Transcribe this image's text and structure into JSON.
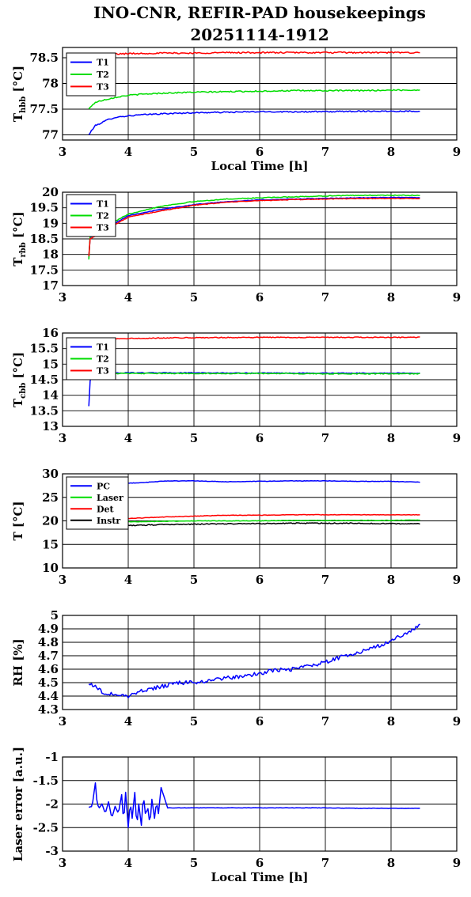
{
  "title_line1": "INO-CNR, REFIR-PAD housekeepings",
  "title_line2": "20251114-1912",
  "chart_data": [
    {
      "type": "line",
      "ylabel": "T",
      "ylabel_sub": "hbb",
      "ylabel_unit": " [°C]",
      "xlabel": "Local Time [h]",
      "xlim": [
        3,
        9
      ],
      "ylim": [
        76.9,
        78.7
      ],
      "xticks": [
        "3",
        "4",
        "5",
        "6",
        "7",
        "8",
        "9"
      ],
      "yticks": [
        {
          "v": 77,
          "t": "77"
        },
        {
          "v": 77.5,
          "t": "77.5"
        },
        {
          "v": 78,
          "t": "78"
        },
        {
          "v": 78.5,
          "t": "78.5"
        }
      ],
      "legend": "top-left",
      "grid": true,
      "series": [
        {
          "name": "T1",
          "color": "#0000ff",
          "x": [
            3.4,
            3.45,
            3.5,
            3.6,
            3.7,
            3.8,
            4.0,
            4.2,
            4.5,
            5,
            5.5,
            6,
            6.5,
            7,
            7.5,
            8,
            8.45
          ],
          "y": [
            77.0,
            77.1,
            77.18,
            77.24,
            77.3,
            77.34,
            77.37,
            77.39,
            77.41,
            77.43,
            77.44,
            77.45,
            77.45,
            77.45,
            77.46,
            77.46,
            77.46
          ],
          "noise": 0.012
        },
        {
          "name": "T2",
          "color": "#00dd00",
          "x": [
            3.4,
            3.45,
            3.5,
            3.6,
            3.7,
            3.8,
            4.0,
            4.2,
            4.5,
            5,
            5.5,
            6,
            6.5,
            7,
            7.5,
            8,
            8.45
          ],
          "y": [
            77.5,
            77.58,
            77.63,
            77.67,
            77.7,
            77.73,
            77.77,
            77.79,
            77.81,
            77.83,
            77.84,
            77.85,
            77.86,
            77.86,
            77.86,
            77.87,
            77.87
          ],
          "noise": 0.012
        },
        {
          "name": "T3",
          "color": "#ff0000",
          "x": [
            3.5,
            3.7,
            4.0,
            4.5,
            5,
            5.5,
            6,
            6.5,
            7,
            7.5,
            8,
            8.45
          ],
          "y": [
            78.56,
            78.57,
            78.58,
            78.59,
            78.59,
            78.6,
            78.6,
            78.6,
            78.6,
            78.6,
            78.6,
            78.6
          ],
          "noise": 0.014
        }
      ]
    },
    {
      "type": "line",
      "ylabel": "T",
      "ylabel_sub": "rbb",
      "ylabel_unit": " [°C]",
      "xlabel": "",
      "xlim": [
        3,
        9
      ],
      "ylim": [
        17,
        20
      ],
      "xticks": [
        "3",
        "4",
        "5",
        "6",
        "7",
        "8",
        "9"
      ],
      "yticks": [
        {
          "v": 17,
          "t": "17"
        },
        {
          "v": 17.5,
          "t": "17.5"
        },
        {
          "v": 18,
          "t": "18"
        },
        {
          "v": 18.5,
          "t": "18.5"
        },
        {
          "v": 19,
          "t": "19"
        },
        {
          "v": 19.5,
          "t": "19.5"
        },
        {
          "v": 20,
          "t": "20"
        }
      ],
      "legend": "top-left",
      "grid": true,
      "series": [
        {
          "name": "T1",
          "color": "#0000ff",
          "x": [
            3.4,
            3.41,
            3.42,
            4.0,
            4.5,
            5,
            5.5,
            6,
            6.5,
            7,
            7.5,
            8,
            8.45
          ],
          "y": [
            17.9,
            18.3,
            18.55,
            19.25,
            19.45,
            19.6,
            19.7,
            19.75,
            19.78,
            19.8,
            19.82,
            19.83,
            19.83
          ],
          "noise": 0.01
        },
        {
          "name": "T2",
          "color": "#00dd00",
          "x": [
            3.4,
            3.41,
            3.42,
            4.0,
            4.5,
            5,
            5.5,
            6,
            6.5,
            7,
            7.5,
            8,
            8.45
          ],
          "y": [
            17.85,
            18.3,
            18.6,
            19.3,
            19.55,
            19.7,
            19.78,
            19.82,
            19.85,
            19.88,
            19.9,
            19.9,
            19.9
          ],
          "noise": 0.012
        },
        {
          "name": "T3",
          "color": "#ff0000",
          "x": [
            3.4,
            3.41,
            3.42,
            4.0,
            4.5,
            5,
            5.5,
            6,
            6.5,
            7,
            7.5,
            8,
            8.45
          ],
          "y": [
            17.95,
            18.3,
            18.5,
            19.2,
            19.4,
            19.58,
            19.68,
            19.73,
            19.76,
            19.78,
            19.8,
            19.8,
            19.8
          ],
          "noise": 0.01
        }
      ]
    },
    {
      "type": "line",
      "ylabel": "T",
      "ylabel_sub": "cbb",
      "ylabel_unit": " [°C]",
      "xlabel": "",
      "xlim": [
        3,
        9
      ],
      "ylim": [
        13,
        16
      ],
      "xticks": [
        "3",
        "4",
        "5",
        "6",
        "7",
        "8",
        "9"
      ],
      "yticks": [
        {
          "v": 13,
          "t": "13"
        },
        {
          "v": 13.5,
          "t": "13.5"
        },
        {
          "v": 14,
          "t": "14"
        },
        {
          "v": 14.5,
          "t": "14.5"
        },
        {
          "v": 15,
          "t": "15"
        },
        {
          "v": 15.5,
          "t": "15.5"
        },
        {
          "v": 16,
          "t": "16"
        }
      ],
      "legend": "top-left",
      "grid": true,
      "series": [
        {
          "name": "T1",
          "color": "#0000ff",
          "x": [
            3.4,
            3.41,
            3.43,
            3.5,
            4.0,
            5,
            6,
            7,
            8,
            8.45
          ],
          "y": [
            13.65,
            14.3,
            14.6,
            14.7,
            14.72,
            14.72,
            14.71,
            14.71,
            14.71,
            14.71
          ],
          "noise": 0.012
        },
        {
          "name": "T2",
          "color": "#00dd00",
          "x": [
            3.5,
            4.0,
            5,
            6,
            7,
            8,
            8.45
          ],
          "y": [
            14.7,
            14.7,
            14.7,
            14.7,
            14.69,
            14.69,
            14.69
          ],
          "noise": 0.014
        },
        {
          "name": "T3",
          "color": "#ff0000",
          "x": [
            3.5,
            4.0,
            4.5,
            5,
            6,
            7,
            8,
            8.45
          ],
          "y": [
            15.82,
            15.82,
            15.84,
            15.85,
            15.86,
            15.86,
            15.86,
            15.86
          ],
          "noise": 0.014
        }
      ]
    },
    {
      "type": "line",
      "ylabel": "T [°C]",
      "ylabel_sub": "",
      "ylabel_unit": "",
      "xlabel": "",
      "xlim": [
        3,
        9
      ],
      "ylim": [
        10,
        30
      ],
      "xticks": [
        "3",
        "4",
        "5",
        "6",
        "7",
        "8",
        "9"
      ],
      "yticks": [
        {
          "v": 10,
          "t": "10"
        },
        {
          "v": 15,
          "t": "15"
        },
        {
          "v": 20,
          "t": "20"
        },
        {
          "v": 25,
          "t": "25"
        },
        {
          "v": 30,
          "t": "30"
        }
      ],
      "legend": "top-left",
      "grid": true,
      "series": [
        {
          "name": "PC",
          "color": "#0000ff",
          "x": [
            4.0,
            4.3,
            4.6,
            5,
            5.5,
            6,
            6.5,
            7,
            7.5,
            8,
            8.45
          ],
          "y": [
            28.0,
            28.2,
            28.5,
            28.5,
            28.3,
            28.4,
            28.5,
            28.5,
            28.4,
            28.4,
            28.2
          ],
          "noise": 0.05
        },
        {
          "name": "Laser",
          "color": "#00dd00",
          "x": [
            4.0,
            4.5,
            5,
            5.5,
            6,
            6.5,
            7,
            7.5,
            8,
            8.45
          ],
          "y": [
            19.8,
            19.9,
            20.0,
            20.0,
            20.0,
            20.1,
            20.1,
            20.1,
            20.1,
            20.2
          ],
          "noise": 0.05
        },
        {
          "name": "Det",
          "color": "#ff0000",
          "x": [
            4.0,
            4.5,
            5,
            5.5,
            6,
            6.5,
            7,
            7.5,
            8,
            8.45
          ],
          "y": [
            20.5,
            20.8,
            21.0,
            21.2,
            21.2,
            21.3,
            21.3,
            21.3,
            21.3,
            21.3
          ],
          "noise": 0.05
        },
        {
          "name": "Instr",
          "color": "#000000",
          "x": [
            4.0,
            4.5,
            5,
            5.5,
            6,
            6.5,
            7,
            7.5,
            8,
            8.45
          ],
          "y": [
            19.0,
            19.2,
            19.3,
            19.4,
            19.4,
            19.5,
            19.5,
            19.5,
            19.4,
            19.4
          ],
          "noise": 0.1
        }
      ]
    },
    {
      "type": "line",
      "ylabel": "RH [%]",
      "ylabel_sub": "",
      "ylabel_unit": "",
      "xlabel": "",
      "xlim": [
        3,
        9
      ],
      "ylim": [
        4.3,
        5.0
      ],
      "xticks": [
        "3",
        "4",
        "5",
        "6",
        "7",
        "8",
        "9"
      ],
      "yticks": [
        {
          "v": 4.3,
          "t": "4.3"
        },
        {
          "v": 4.4,
          "t": "4.4"
        },
        {
          "v": 4.5,
          "t": "4.5"
        },
        {
          "v": 4.6,
          "t": "4.6"
        },
        {
          "v": 4.7,
          "t": "4.7"
        },
        {
          "v": 4.8,
          "t": "4.8"
        },
        {
          "v": 4.9,
          "t": "4.9"
        },
        {
          "v": 5,
          "t": "5"
        }
      ],
      "legend": "none",
      "grid": true,
      "series": [
        {
          "name": "",
          "color": "#0000ff",
          "x": [
            3.4,
            3.5,
            3.6,
            3.8,
            4.0,
            4.2,
            4.5,
            4.8,
            5,
            5.3,
            5.6,
            5.9,
            6.2,
            6.5,
            6.8,
            7.0,
            7.3,
            7.6,
            7.9,
            8.1,
            8.3,
            8.45
          ],
          "y": [
            4.5,
            4.47,
            4.43,
            4.41,
            4.4,
            4.44,
            4.47,
            4.5,
            4.5,
            4.52,
            4.54,
            4.56,
            4.59,
            4.6,
            4.63,
            4.65,
            4.7,
            4.74,
            4.79,
            4.84,
            4.88,
            4.93
          ],
          "noise": 0.015
        }
      ]
    },
    {
      "type": "line",
      "ylabel": "Laser error [a.u.]",
      "ylabel_sub": "",
      "ylabel_unit": "",
      "xlabel": "Local Time [h]",
      "xlim": [
        3,
        9
      ],
      "ylim": [
        -3,
        -1
      ],
      "xticks": [
        "3",
        "4",
        "5",
        "6",
        "7",
        "8",
        "9"
      ],
      "yticks": [
        {
          "v": -3,
          "t": "-3"
        },
        {
          "v": -2.5,
          "t": "-2.5"
        },
        {
          "v": -2,
          "t": "-2"
        },
        {
          "v": -1.5,
          "t": "-1.5"
        },
        {
          "v": -1,
          "t": "-1"
        }
      ],
      "legend": "none",
      "grid": true,
      "series": [
        {
          "name": "",
          "color": "#0000ff",
          "x": [
            3.4,
            3.45,
            3.5,
            3.52,
            3.55,
            3.6,
            3.65,
            3.7,
            3.75,
            3.8,
            3.85,
            3.9,
            3.93,
            3.96,
            4.0,
            4.03,
            4.06,
            4.1,
            4.13,
            4.16,
            4.2,
            4.23,
            4.26,
            4.3,
            4.33,
            4.36,
            4.4,
            4.43,
            4.46,
            4.5,
            4.6,
            5,
            5.5,
            6,
            6.5,
            7,
            7.5,
            8,
            8.45
          ],
          "y": [
            -2.07,
            -2.05,
            -1.55,
            -1.9,
            -2.1,
            -2.0,
            -2.2,
            -1.95,
            -2.3,
            -2.05,
            -2.2,
            -1.8,
            -2.4,
            -1.75,
            -2.5,
            -1.95,
            -2.3,
            -1.75,
            -2.5,
            -2.0,
            -2.45,
            -1.8,
            -2.2,
            -2.1,
            -2.45,
            -1.9,
            -2.3,
            -1.95,
            -2.2,
            -1.65,
            -2.08,
            -2.08,
            -2.08,
            -2.08,
            -2.08,
            -2.08,
            -2.09,
            -2.09,
            -2.09
          ],
          "noise": 0.004
        }
      ]
    }
  ]
}
